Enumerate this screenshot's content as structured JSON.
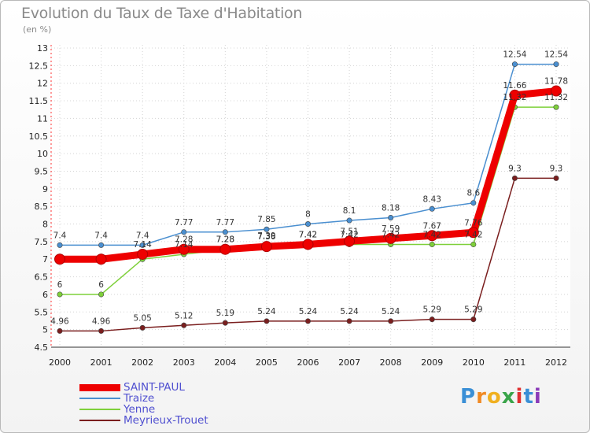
{
  "title": "Evolution du Taux de Taxe d'Habitation",
  "subtitle": "(en %)",
  "logo": {
    "letters": [
      "P",
      "r",
      "o",
      "x",
      "i",
      "t",
      "i"
    ],
    "colors": [
      "#3a8fd6",
      "#f08a24",
      "#f0b020",
      "#3aa44a",
      "#e03030",
      "#3a8fd6",
      "#8a3ab8"
    ]
  },
  "chart_data": {
    "type": "line",
    "x": [
      2000,
      2001,
      2002,
      2003,
      2004,
      2005,
      2006,
      2007,
      2008,
      2009,
      2010,
      2011,
      2012
    ],
    "ylim": [
      4.5,
      13
    ],
    "yticks": [
      4.5,
      5,
      5.5,
      6,
      6.5,
      7,
      7.5,
      8,
      8.5,
      9,
      9.5,
      10,
      10.5,
      11,
      11.5,
      12,
      12.5,
      13
    ],
    "grid": true,
    "legend_position": "bottom-left",
    "series": [
      {
        "name": "SAINT-PAUL",
        "color": "#ee0000",
        "values": [
          7.0,
          7.0,
          7.14,
          7.28,
          7.28,
          7.36,
          7.42,
          7.51,
          7.59,
          7.67,
          7.76,
          11.66,
          11.78
        ],
        "labels": [
          "",
          "",
          "7.14",
          "7.28",
          "7.28",
          "7.36",
          "7.42",
          "7.51",
          "7.59",
          "7.67",
          "7.76",
          "11.66",
          "11.78"
        ]
      },
      {
        "name": "Traize",
        "color": "#4a8fd0",
        "values": [
          7.4,
          7.4,
          7.4,
          7.77,
          7.77,
          7.85,
          8.0,
          8.1,
          8.18,
          8.43,
          8.6,
          12.54,
          12.54
        ],
        "labels": [
          "7.4",
          "7.4",
          "7.4",
          "7.77",
          "7.77",
          "7.85",
          "8",
          "8.1",
          "8.18",
          "8.43",
          "8.6",
          "12.54",
          "12.54"
        ]
      },
      {
        "name": "Yenne",
        "color": "#7ed03a",
        "values": [
          6.0,
          6.0,
          7.0,
          7.14,
          7.28,
          7.39,
          7.42,
          7.42,
          7.42,
          7.42,
          7.42,
          11.32,
          11.32
        ],
        "labels": [
          "6",
          "6",
          "",
          "7.14",
          "7.28",
          "7.39",
          "7.42",
          "7.42",
          "7.42",
          "7.42",
          "7.42",
          "11.32",
          "11.32"
        ]
      },
      {
        "name": "Meyrieux-Trouet",
        "color": "#7a1e1e",
        "values": [
          4.96,
          4.96,
          5.05,
          5.12,
          5.19,
          5.24,
          5.24,
          5.24,
          5.24,
          5.29,
          5.29,
          9.3,
          9.3
        ],
        "labels": [
          "4.96",
          "4.96",
          "5.05",
          "5.12",
          "5.19",
          "5.24",
          "5.24",
          "5.24",
          "5.24",
          "5.29",
          "5.29",
          "9.3",
          "9.3"
        ]
      }
    ]
  }
}
